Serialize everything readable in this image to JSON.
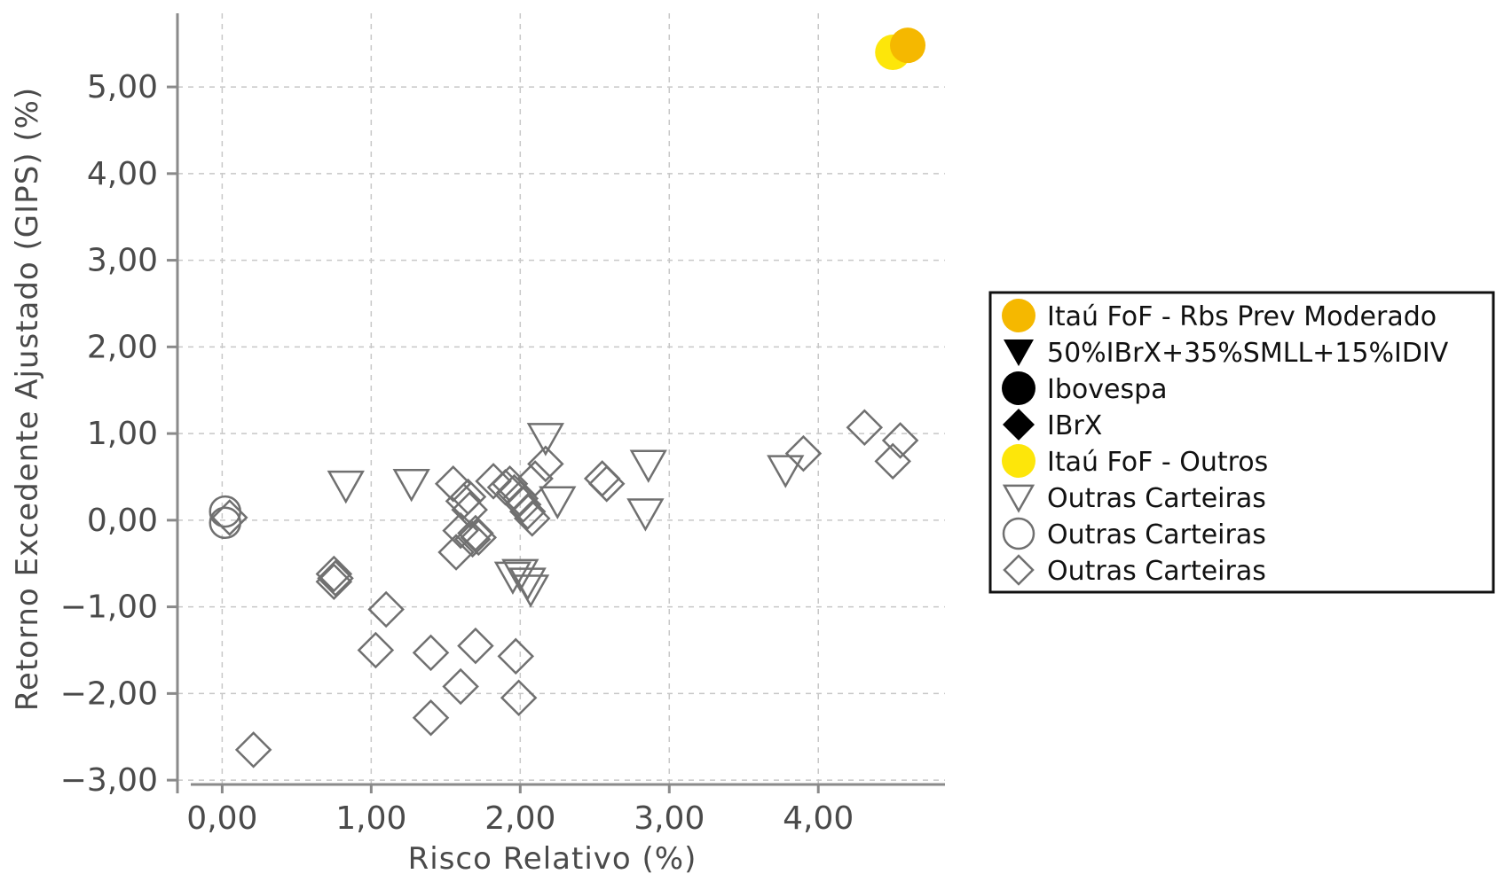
{
  "chart_data": {
    "type": "scatter",
    "title": "",
    "xlabel": "Risco Relativo (%)",
    "ylabel": "Retorno Excedente Ajustado (GIPS) (%)",
    "xlim": [
      -0.3,
      4.85
    ],
    "ylim": [
      -3.05,
      5.85
    ],
    "x_ticks": [
      0,
      1,
      2,
      3,
      4
    ],
    "x_tick_labels": [
      "0,00",
      "1,00",
      "2,00",
      "3,00",
      "4,00"
    ],
    "y_ticks": [
      -3,
      -2,
      -1,
      0,
      1,
      2,
      3,
      4,
      5
    ],
    "y_tick_labels": [
      "−3,00",
      "−2,00",
      "−1,00",
      "0,00",
      "1,00",
      "2,00",
      "3,00",
      "4,00",
      "5,00"
    ],
    "grid": true,
    "legend_position": "right",
    "series": [
      {
        "name": "Itaú FoF - Rbs Prev Moderado",
        "marker": "circle",
        "filled": true,
        "color": "#f5b800",
        "points": [
          [
            4.6,
            5.48
          ]
        ]
      },
      {
        "name": "50%IBrX+35%SMLL+15%IDIV",
        "marker": "triangle-down",
        "filled": true,
        "color": "#000000",
        "points": []
      },
      {
        "name": "Ibovespa",
        "marker": "circle",
        "filled": true,
        "color": "#000000",
        "points": []
      },
      {
        "name": "IBrX",
        "marker": "diamond",
        "filled": true,
        "color": "#000000",
        "points": []
      },
      {
        "name": "Itaú FoF - Outros",
        "marker": "circle",
        "filled": true,
        "color": "#fde60a",
        "points": [
          [
            4.5,
            5.4
          ]
        ]
      },
      {
        "name": "Outras Carteiras",
        "marker": "triangle-down",
        "filled": false,
        "color": "#707070",
        "points": [
          [
            0.83,
            0.4
          ],
          [
            1.27,
            0.42
          ],
          [
            2.17,
            0.95
          ],
          [
            2.25,
            0.22
          ],
          [
            2.86,
            0.64
          ],
          [
            2.84,
            0.08
          ],
          [
            3.78,
            0.58
          ],
          [
            2.0,
            -0.62
          ],
          [
            2.05,
            -0.72
          ],
          [
            2.07,
            -0.8
          ],
          [
            1.95,
            -0.65
          ]
        ]
      },
      {
        "name": "Outras Carteiras",
        "marker": "circle",
        "filled": false,
        "color": "#707070",
        "points": [
          [
            0.02,
            0.1
          ],
          [
            0.02,
            -0.03
          ]
        ]
      },
      {
        "name": "Outras Carteiras",
        "marker": "diamond",
        "filled": false,
        "color": "#707070",
        "points": [
          [
            0.05,
            0.03
          ],
          [
            0.75,
            -0.62
          ],
          [
            0.76,
            -0.67
          ],
          [
            0.75,
            -0.71
          ],
          [
            0.21,
            -2.65
          ],
          [
            1.03,
            -1.5
          ],
          [
            1.1,
            -1.03
          ],
          [
            1.4,
            -1.53
          ],
          [
            1.4,
            -2.28
          ],
          [
            1.6,
            -1.92
          ],
          [
            1.7,
            -1.45
          ],
          [
            1.97,
            -1.57
          ],
          [
            1.99,
            -2.05
          ],
          [
            1.55,
            0.42
          ],
          [
            1.57,
            -0.37
          ],
          [
            1.6,
            -0.12
          ],
          [
            1.62,
            0.22
          ],
          [
            1.65,
            0.27
          ],
          [
            1.66,
            0.12
          ],
          [
            1.68,
            -0.22
          ],
          [
            1.7,
            -0.15
          ],
          [
            1.72,
            -0.2
          ],
          [
            1.82,
            0.45
          ],
          [
            1.9,
            0.38
          ],
          [
            1.93,
            0.42
          ],
          [
            1.96,
            0.32
          ],
          [
            2.0,
            0.25
          ],
          [
            2.02,
            0.18
          ],
          [
            2.05,
            0.1
          ],
          [
            2.08,
            0.02
          ],
          [
            2.1,
            0.48
          ],
          [
            2.17,
            0.65
          ],
          [
            2.55,
            0.48
          ],
          [
            2.58,
            0.42
          ],
          [
            3.9,
            0.77
          ],
          [
            4.31,
            1.07
          ],
          [
            4.55,
            0.92
          ],
          [
            4.5,
            0.68
          ]
        ]
      }
    ]
  }
}
